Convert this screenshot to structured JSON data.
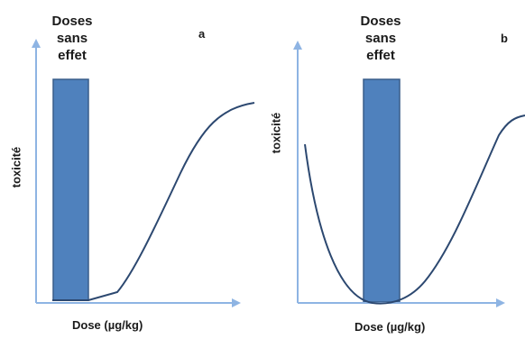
{
  "panels": [
    {
      "letter": "a",
      "region_label": [
        "Doses",
        "sans",
        "effet"
      ],
      "xlabel": "Dose (µg/kg)",
      "ylabel": "toxicité",
      "curve_shape": "sigmoid (threshold dose-response)"
    },
    {
      "letter": "b",
      "region_label": [
        "Doses",
        "sans",
        "effet"
      ],
      "xlabel": "Dose (µg/kg)",
      "ylabel": "toxicité",
      "curve_shape": "U-shaped (non-monotonic dose-response)"
    }
  ],
  "colors": {
    "axis": "#8eb4e3",
    "bar_fill": "#4f81bd",
    "bar_stroke": "#385d8a",
    "curve": "#2c4870",
    "text": "#1a1a1a"
  }
}
